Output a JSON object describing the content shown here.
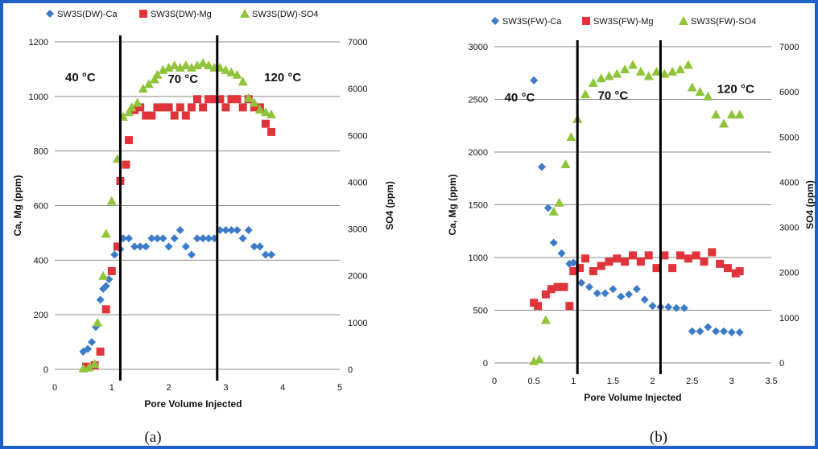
{
  "colors": {
    "ca": "#3d7bc8",
    "mg": "#e0343a",
    "so4": "#8fc43a",
    "frame": "#1f5fc8"
  },
  "chart_data": [
    {
      "type": "scatter",
      "caption": "(a)",
      "xlabel": "Pore Volume Injected",
      "ylabel": "Ca, Mg (ppm)",
      "y2label": "SO4 (ppm)",
      "xlim": [
        0,
        5
      ],
      "ylim": [
        0,
        1200
      ],
      "y2lim": [
        0,
        7000
      ],
      "xticks": [
        "0",
        "1",
        "2",
        "3",
        "4",
        "5"
      ],
      "yticks": [
        "0",
        "200",
        "400",
        "600",
        "800",
        "1000",
        "1200"
      ],
      "y2ticks": [
        "0",
        "1000",
        "2000",
        "3000",
        "4000",
        "5000",
        "6000",
        "7000"
      ],
      "grid": true,
      "legend": "top",
      "vlines": [
        1.15,
        2.85
      ],
      "temps": [
        {
          "text": "40 °C",
          "x": 0.45,
          "y": 1055
        },
        {
          "text": "70 °C",
          "x": 2.25,
          "y": 1050
        },
        {
          "text": "120 °C",
          "x": 4.0,
          "y": 1055
        }
      ],
      "series": [
        {
          "name": "SW3S(DW)-Ca",
          "marker": "diamond",
          "axis": "y",
          "x": [
            0.5,
            0.58,
            0.65,
            0.72,
            0.8,
            0.85,
            0.9,
            0.95,
            1.05,
            1.15,
            1.2,
            1.3,
            1.4,
            1.5,
            1.6,
            1.7,
            1.8,
            1.9,
            2.0,
            2.1,
            2.2,
            2.3,
            2.4,
            2.5,
            2.6,
            2.7,
            2.8,
            2.9,
            3.0,
            3.1,
            3.2,
            3.3,
            3.4,
            3.5,
            3.6,
            3.7,
            3.8
          ],
          "y": [
            65,
            75,
            100,
            155,
            255,
            295,
            305,
            330,
            420,
            440,
            480,
            480,
            450,
            450,
            450,
            480,
            480,
            480,
            450,
            480,
            510,
            450,
            420,
            480,
            480,
            480,
            480,
            510,
            510,
            510,
            510,
            480,
            510,
            450,
            450,
            420,
            420
          ]
        },
        {
          "name": "SW3S(DW)-Mg",
          "marker": "square",
          "axis": "y",
          "x": [
            0.55,
            0.7,
            0.8,
            0.9,
            1.0,
            1.1,
            1.15,
            1.25,
            1.3,
            1.4,
            1.5,
            1.6,
            1.7,
            1.8,
            1.9,
            2.0,
            2.1,
            2.2,
            2.3,
            2.4,
            2.5,
            2.6,
            2.7,
            2.8,
            2.9,
            3.0,
            3.1,
            3.2,
            3.3,
            3.4,
            3.5,
            3.6,
            3.7,
            3.8
          ],
          "y": [
            10,
            15,
            65,
            220,
            360,
            450,
            690,
            750,
            840,
            950,
            960,
            930,
            930,
            960,
            960,
            960,
            930,
            960,
            930,
            960,
            990,
            960,
            990,
            990,
            990,
            960,
            990,
            990,
            960,
            990,
            960,
            960,
            900,
            870
          ]
        },
        {
          "name": "SW3S(DW)-SO4",
          "marker": "triangle",
          "axis": "y2",
          "x": [
            0.5,
            0.6,
            0.7,
            0.75,
            0.85,
            0.9,
            1.0,
            1.1,
            1.2,
            1.3,
            1.35,
            1.45,
            1.55,
            1.65,
            1.75,
            1.8,
            1.9,
            2.0,
            2.1,
            2.2,
            2.3,
            2.4,
            2.5,
            2.6,
            2.7,
            2.8,
            2.9,
            3.0,
            3.1,
            3.2,
            3.3,
            3.4,
            3.5,
            3.6,
            3.7,
            3.8
          ],
          "y": [
            20,
            40,
            120,
            1000,
            2000,
            2900,
            3600,
            4500,
            5400,
            5500,
            5600,
            5700,
            6000,
            6100,
            6200,
            6300,
            6400,
            6450,
            6500,
            6450,
            6500,
            6450,
            6500,
            6550,
            6500,
            6450,
            6450,
            6400,
            6350,
            6300,
            6150,
            5800,
            5700,
            5550,
            5500,
            5450
          ]
        }
      ]
    },
    {
      "type": "scatter",
      "caption": "(b)",
      "xlabel": "Pore Volume Injected",
      "ylabel": "Ca, Mg (ppm)",
      "y2label": "SO4 (ppm)",
      "xlim": [
        0,
        3.5
      ],
      "ylim": [
        0,
        3000
      ],
      "y2lim": [
        0,
        7000
      ],
      "xticks": [
        "0",
        "0.5",
        "1",
        "1.5",
        "2",
        "2.5",
        "3",
        "3.5"
      ],
      "yticks": [
        "0",
        "500",
        "1000",
        "1500",
        "2000",
        "2500",
        "3000"
      ],
      "y2ticks": [
        "0",
        "1000",
        "2000",
        "3000",
        "4000",
        "5000",
        "6000",
        "7000"
      ],
      "grid": true,
      "legend": "top",
      "vlines": [
        1.05,
        2.1
      ],
      "temps": [
        {
          "text": "40 °C",
          "x": 0.32,
          "y": 2480
        },
        {
          "text": "70 °C",
          "x": 1.5,
          "y": 2500
        },
        {
          "text": "120 °C",
          "x": 3.05,
          "y": 2560
        }
      ],
      "series": [
        {
          "name": "SW3S(FW)-Ca",
          "marker": "diamond",
          "axis": "y",
          "x": [
            0.5,
            0.6,
            0.68,
            0.75,
            0.85,
            0.95,
            1.0,
            1.1,
            1.2,
            1.3,
            1.4,
            1.5,
            1.6,
            1.7,
            1.8,
            1.9,
            2.0,
            2.1,
            2.2,
            2.3,
            2.4,
            2.5,
            2.6,
            2.7,
            2.8,
            2.9,
            3.0,
            3.1
          ],
          "y": [
            2680,
            1860,
            1470,
            1140,
            1040,
            940,
            950,
            760,
            720,
            660,
            660,
            700,
            630,
            650,
            700,
            600,
            540,
            530,
            530,
            520,
            520,
            300,
            300,
            340,
            300,
            300,
            290,
            290
          ]
        },
        {
          "name": "SW3S(FW)-Mg",
          "marker": "square",
          "axis": "y",
          "x": [
            0.5,
            0.55,
            0.65,
            0.72,
            0.8,
            0.88,
            0.95,
            1.0,
            1.08,
            1.15,
            1.25,
            1.35,
            1.45,
            1.55,
            1.65,
            1.75,
            1.85,
            1.95,
            2.05,
            2.15,
            2.25,
            2.35,
            2.45,
            2.55,
            2.65,
            2.75,
            2.85,
            2.95,
            3.05,
            3.1
          ],
          "y": [
            570,
            540,
            650,
            700,
            720,
            720,
            540,
            870,
            900,
            990,
            870,
            920,
            960,
            990,
            960,
            1020,
            960,
            1020,
            900,
            1020,
            900,
            1020,
            990,
            1020,
            960,
            1050,
            940,
            900,
            850,
            870
          ]
        },
        {
          "name": "SW3S(FW)-SO4",
          "marker": "triangle",
          "axis": "y2",
          "x": [
            0.5,
            0.57,
            0.65,
            0.75,
            0.82,
            0.9,
            0.97,
            1.05,
            1.15,
            1.25,
            1.35,
            1.45,
            1.55,
            1.65,
            1.75,
            1.85,
            1.95,
            2.05,
            2.15,
            2.25,
            2.35,
            2.45,
            2.5,
            2.6,
            2.7,
            2.8,
            2.9,
            3.0,
            3.1
          ],
          "y": [
            40,
            80,
            950,
            3350,
            3550,
            4400,
            5000,
            5400,
            5950,
            6200,
            6300,
            6350,
            6400,
            6500,
            6600,
            6450,
            6350,
            6450,
            6400,
            6450,
            6500,
            6600,
            6100,
            6000,
            5900,
            5500,
            5300,
            5500,
            5500
          ]
        }
      ]
    }
  ]
}
